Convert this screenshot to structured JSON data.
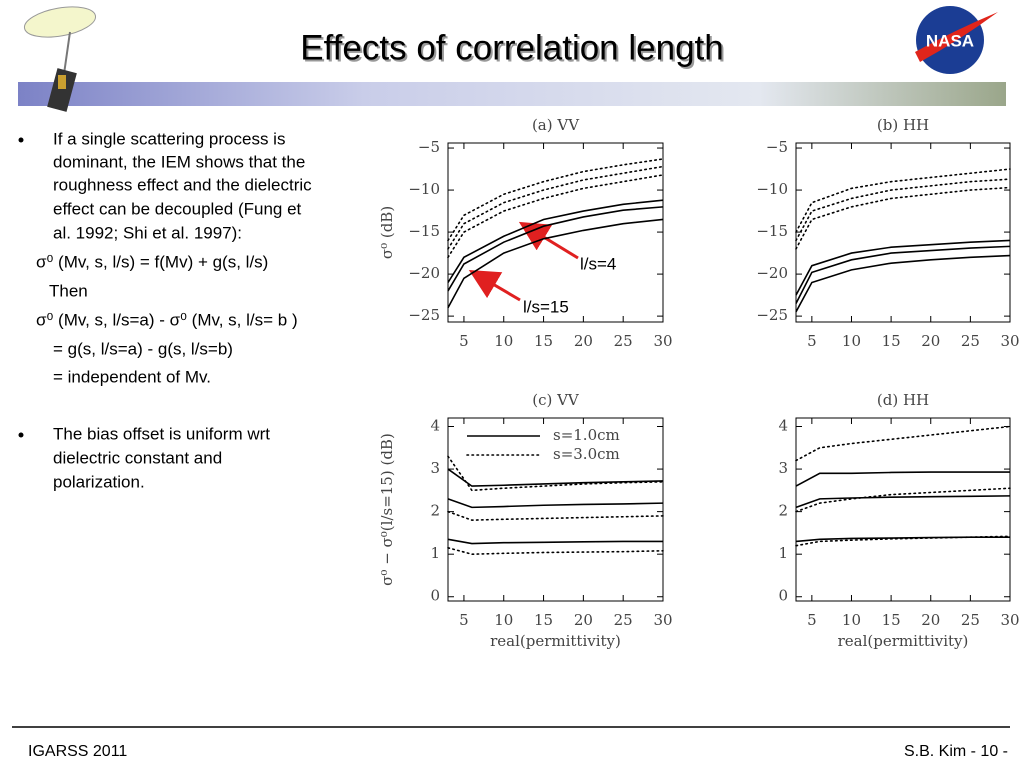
{
  "header": {
    "title": "Effects of correlation length",
    "logo": "NASA"
  },
  "body": {
    "bullet1": [
      "If a single scattering process is",
      "dominant, the IEM shows that the",
      "roughness effect and the dielectric",
      "effect can be decoupled (Fung et",
      "al. 1992; Shi et al. 1997):"
    ],
    "equations": [
      "σ⁰ (Mv, s, l/s) = f(Mv) + g(s, l/s)",
      "Then",
      "σ⁰ (Mv, s, l/s=a)  - σ⁰ (Mv, s, l/s= b )",
      "= g(s, l/s=a) - g(s, l/s=b)",
      "= independent of Mv."
    ],
    "bullet2": [
      "The bias offset is uniform wrt",
      "dielectric constant and",
      "polarization."
    ]
  },
  "footer": {
    "left": "IGARSS 2011",
    "right": "S.B. Kim - 10 -"
  },
  "chart_data": [
    {
      "type": "line",
      "title": "(a) VV",
      "ylabel": "σ⁰ (dB)",
      "x": [
        3,
        5,
        10,
        15,
        20,
        25,
        30
      ],
      "xlim": [
        3,
        30
      ],
      "xticks": [
        5,
        10,
        15,
        20,
        25,
        30
      ],
      "ylim": [
        -25.7,
        -4.4
      ],
      "yticks": [
        {
          "value": -5,
          "label": "−5"
        },
        {
          "value": -10,
          "label": "−10"
        },
        {
          "value": -15,
          "label": "−15"
        },
        {
          "value": -20,
          "label": "−20"
        },
        {
          "value": -25,
          "label": "−25"
        }
      ],
      "annotations": [
        "l/s=4",
        "l/s=15"
      ],
      "series": [
        {
          "style": "solid",
          "color": "#000",
          "values": [
            -21,
            -18,
            -15.5,
            -13.5,
            -12.5,
            -11.7,
            -11.2
          ]
        },
        {
          "style": "solid",
          "color": "#000",
          "values": [
            -22,
            -18.8,
            -16.2,
            -14.3,
            -13.2,
            -12.4,
            -12
          ]
        },
        {
          "style": "solid",
          "color": "#000",
          "values": [
            -24,
            -20.5,
            -17.5,
            -15.8,
            -14.8,
            -14,
            -13.5
          ]
        },
        {
          "style": "dotted",
          "color": "#000",
          "values": [
            -16,
            -13,
            -10.5,
            -9,
            -7.8,
            -7,
            -6.3
          ]
        },
        {
          "style": "dotted",
          "color": "#000",
          "values": [
            -17,
            -14,
            -11.5,
            -10,
            -8.8,
            -8,
            -7.2
          ]
        },
        {
          "style": "dotted",
          "color": "#000",
          "values": [
            -18,
            -15,
            -12.5,
            -11,
            -9.8,
            -9,
            -8.2
          ]
        }
      ]
    },
    {
      "type": "line",
      "title": "(b) HH",
      "x": [
        3,
        5,
        10,
        15,
        20,
        25,
        30
      ],
      "xlim": [
        3,
        30
      ],
      "xticks": [
        5,
        10,
        15,
        20,
        25,
        30
      ],
      "ylim": [
        -25.7,
        -4.4
      ],
      "yticks": [
        {
          "value": -5,
          "label": "−5"
        },
        {
          "value": -10,
          "label": "−10"
        },
        {
          "value": -15,
          "label": "−15"
        },
        {
          "value": -20,
          "label": "−20"
        },
        {
          "value": -25,
          "label": "−25"
        }
      ],
      "series": [
        {
          "style": "solid",
          "color": "#000",
          "values": [
            -22.5,
            -19,
            -17.5,
            -16.8,
            -16.5,
            -16.2,
            -16
          ]
        },
        {
          "style": "solid",
          "color": "#000",
          "values": [
            -23.5,
            -19.8,
            -18.3,
            -17.5,
            -17.2,
            -16.9,
            -16.7
          ]
        },
        {
          "style": "solid",
          "color": "#000",
          "values": [
            -24.5,
            -21,
            -19.5,
            -18.7,
            -18.3,
            -18,
            -17.8
          ]
        },
        {
          "style": "dotted",
          "color": "#000",
          "values": [
            -15,
            -11.5,
            -9.8,
            -9,
            -8.5,
            -8,
            -7.5
          ]
        },
        {
          "style": "dotted",
          "color": "#000",
          "values": [
            -16,
            -12.5,
            -11,
            -10,
            -9.5,
            -9,
            -8.7
          ]
        },
        {
          "style": "dotted",
          "color": "#000",
          "values": [
            -17,
            -13.5,
            -12,
            -11,
            -10.5,
            -10,
            -9.7
          ]
        }
      ]
    },
    {
      "type": "line",
      "title": "(c) VV",
      "ylabel": "σ⁰ − σ⁰(l/s=15) (dB)",
      "xlabel": "real(permittivity)",
      "x": [
        3,
        6,
        10,
        15,
        20,
        25,
        30
      ],
      "xlim": [
        3,
        30
      ],
      "xticks": [
        5,
        10,
        15,
        20,
        25,
        30
      ],
      "ylim": [
        -0.1,
        4.2
      ],
      "yticks": [
        0,
        1,
        2,
        3,
        4
      ],
      "legend": [
        {
          "label": "s=1.0cm",
          "style": "solid"
        },
        {
          "label": "s=3.0cm",
          "style": "dotted"
        }
      ],
      "series": [
        {
          "style": "solid",
          "color": "#000",
          "values": [
            3.0,
            2.6,
            2.62,
            2.65,
            2.68,
            2.7,
            2.72
          ]
        },
        {
          "style": "solid",
          "color": "#000",
          "values": [
            2.3,
            2.1,
            2.12,
            2.15,
            2.17,
            2.18,
            2.2
          ]
        },
        {
          "style": "solid",
          "color": "#000",
          "values": [
            1.35,
            1.25,
            1.27,
            1.28,
            1.29,
            1.3,
            1.3
          ]
        },
        {
          "style": "dotted",
          "color": "#000",
          "values": [
            3.3,
            2.5,
            2.55,
            2.6,
            2.65,
            2.68,
            2.7
          ]
        },
        {
          "style": "dotted",
          "color": "#000",
          "values": [
            2.0,
            1.8,
            1.82,
            1.84,
            1.86,
            1.88,
            1.9
          ]
        },
        {
          "style": "dotted",
          "color": "#000",
          "values": [
            1.15,
            1.0,
            1.02,
            1.04,
            1.05,
            1.06,
            1.08
          ]
        }
      ]
    },
    {
      "type": "line",
      "title": "(d) HH",
      "xlabel": "real(permittivity)",
      "x": [
        3,
        6,
        10,
        15,
        20,
        25,
        30
      ],
      "xlim": [
        3,
        30
      ],
      "xticks": [
        5,
        10,
        15,
        20,
        25,
        30
      ],
      "ylim": [
        -0.1,
        4.2
      ],
      "yticks": [
        0,
        1,
        2,
        3,
        4
      ],
      "series": [
        {
          "style": "solid",
          "color": "#000",
          "values": [
            2.6,
            2.9,
            2.9,
            2.92,
            2.93,
            2.93,
            2.93
          ]
        },
        {
          "style": "solid",
          "color": "#000",
          "values": [
            2.1,
            2.3,
            2.32,
            2.34,
            2.35,
            2.36,
            2.37
          ]
        },
        {
          "style": "solid",
          "color": "#000",
          "values": [
            1.3,
            1.35,
            1.37,
            1.38,
            1.39,
            1.4,
            1.4
          ]
        },
        {
          "style": "dotted",
          "color": "#000",
          "values": [
            3.2,
            3.5,
            3.6,
            3.7,
            3.8,
            3.9,
            4.0
          ]
        },
        {
          "style": "dotted",
          "color": "#000",
          "values": [
            2.0,
            2.2,
            2.3,
            2.4,
            2.45,
            2.5,
            2.55
          ]
        },
        {
          "style": "dotted",
          "color": "#000",
          "values": [
            1.2,
            1.3,
            1.33,
            1.36,
            1.38,
            1.4,
            1.42
          ]
        }
      ]
    }
  ]
}
